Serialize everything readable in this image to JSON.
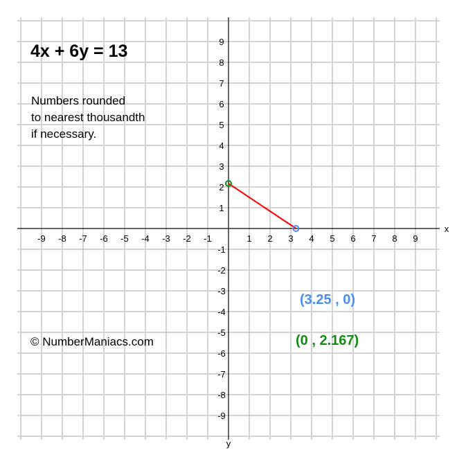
{
  "title": "4x + 6y = 13",
  "note_lines": [
    "Numbers rounded",
    "to nearest thousandth",
    "if necessary."
  ],
  "copyright": "© NumberManiacs.com",
  "chart_data": {
    "type": "line",
    "title": "4x + 6y = 13",
    "xlabel": "x",
    "ylabel": "y",
    "xlim": [
      -10,
      10
    ],
    "ylim": [
      -10,
      10
    ],
    "grid": true,
    "x_ticks": [
      -9,
      -8,
      -7,
      -6,
      -5,
      -4,
      -3,
      -2,
      -1,
      1,
      2,
      3,
      4,
      5,
      6,
      7,
      8,
      9
    ],
    "y_ticks": [
      -9,
      -8,
      -7,
      -6,
      -5,
      -4,
      -3,
      -2,
      -1,
      1,
      2,
      3,
      4,
      5,
      6,
      7,
      8,
      9
    ],
    "segment": {
      "from": [
        0,
        2.167
      ],
      "to": [
        3.25,
        0
      ],
      "color": "#ff0000"
    },
    "points": [
      {
        "x": 3.25,
        "y": 0,
        "label": "(3.25 , 0)",
        "color": "#4a8ff0"
      },
      {
        "x": 0,
        "y": 2.167,
        "label": "(0 , 2.167)",
        "color": "#138a13"
      }
    ]
  }
}
